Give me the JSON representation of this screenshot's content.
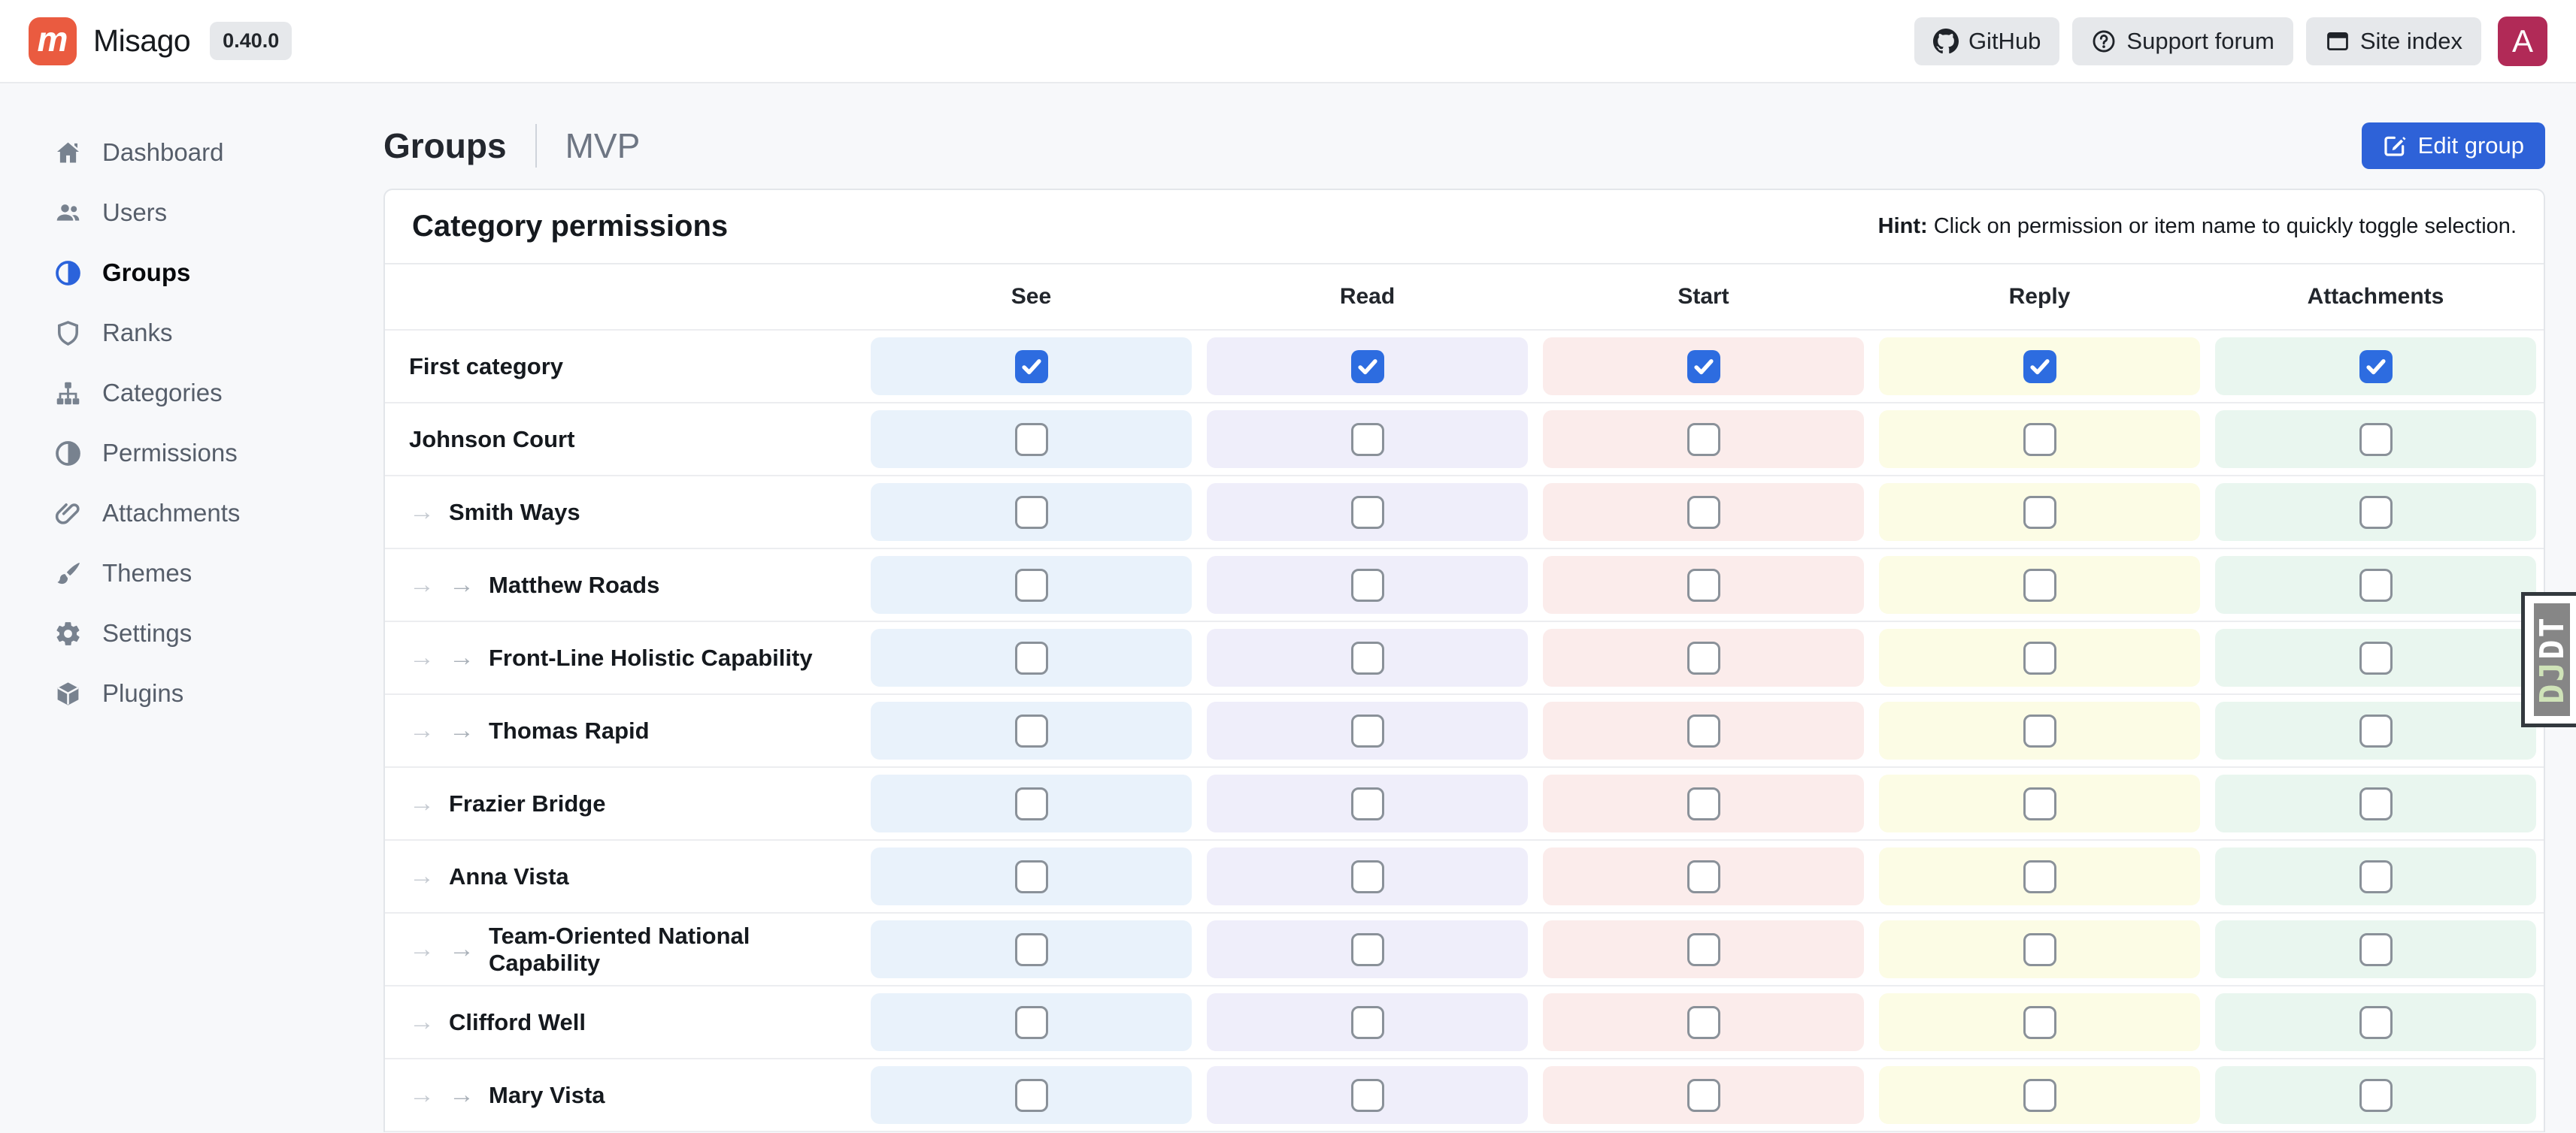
{
  "navbar": {
    "brand": "Misago",
    "brand_letter": "m",
    "version": "0.40.0",
    "links": [
      {
        "label": "GitHub",
        "icon": "github-icon"
      },
      {
        "label": "Support forum",
        "icon": "help-icon"
      },
      {
        "label": "Site index",
        "icon": "site-index-icon"
      }
    ],
    "avatar_letter": "A"
  },
  "sidebar": {
    "items": [
      {
        "label": "Dashboard",
        "icon": "home-icon",
        "active": false
      },
      {
        "label": "Users",
        "icon": "users-icon",
        "active": false
      },
      {
        "label": "Groups",
        "icon": "contrast-icon",
        "active": true
      },
      {
        "label": "Ranks",
        "icon": "shield-icon",
        "active": false
      },
      {
        "label": "Categories",
        "icon": "sitemap-icon",
        "active": false
      },
      {
        "label": "Permissions",
        "icon": "contrast-icon",
        "active": false
      },
      {
        "label": "Attachments",
        "icon": "paperclip-icon",
        "active": false
      },
      {
        "label": "Themes",
        "icon": "brush-icon",
        "active": false
      },
      {
        "label": "Settings",
        "icon": "gear-icon",
        "active": false
      },
      {
        "label": "Plugins",
        "icon": "box-icon",
        "active": false
      }
    ]
  },
  "page_header": {
    "title": "Groups",
    "subtitle": "MVP",
    "edit_button": "Edit group"
  },
  "card": {
    "title": "Category permissions",
    "hint_label": "Hint:",
    "hint_text": " Click on permission or item name to quickly toggle selection.",
    "columns": [
      {
        "key": "see",
        "label": "See",
        "tint": "#e9f2fb"
      },
      {
        "key": "read",
        "label": "Read",
        "tint": "#efeefa"
      },
      {
        "key": "start",
        "label": "Start",
        "tint": "#fbeceb"
      },
      {
        "key": "reply",
        "label": "Reply",
        "tint": "#fcfce5"
      },
      {
        "key": "attachments",
        "label": "Attachments",
        "tint": "#e9f6ef"
      }
    ],
    "rows": [
      {
        "name": "First category",
        "depth": 0,
        "checked": true
      },
      {
        "name": "Johnson Court",
        "depth": 0,
        "checked": false
      },
      {
        "name": "Smith Ways",
        "depth": 1,
        "checked": false
      },
      {
        "name": "Matthew Roads",
        "depth": 2,
        "checked": false
      },
      {
        "name": "Front-Line Holistic Capability",
        "depth": 2,
        "checked": false
      },
      {
        "name": "Thomas Rapid",
        "depth": 2,
        "checked": false
      },
      {
        "name": "Frazier Bridge",
        "depth": 1,
        "checked": false
      },
      {
        "name": "Anna Vista",
        "depth": 1,
        "checked": false
      },
      {
        "name": "Team-Oriented National Capability",
        "depth": 2,
        "checked": false
      },
      {
        "name": "Clifford Well",
        "depth": 1,
        "checked": false
      },
      {
        "name": "Mary Vista",
        "depth": 2,
        "checked": false
      }
    ]
  },
  "colors": {
    "accent_blue": "#2e62d8",
    "checkbox_checked": "#2d6ce0",
    "brand_orange": "#ea5b40",
    "avatar_crimson": "#b12a57"
  },
  "debug_toolbar": {
    "label": "DJDT"
  }
}
